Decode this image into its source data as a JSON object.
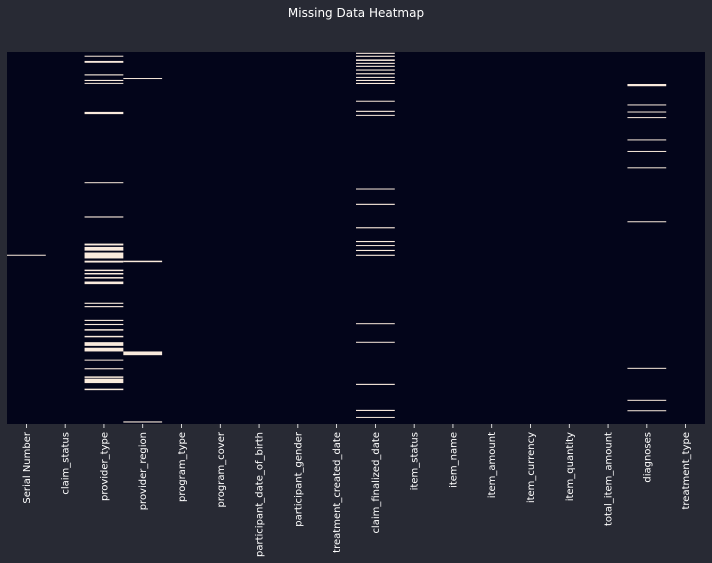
{
  "chart_data": {
    "type": "heatmap",
    "title": "Missing Data Heatmap",
    "xlabel": "",
    "ylabel": "",
    "n_rows": 1000,
    "columns": [
      "Serial Number",
      "claim_status",
      "provider_type",
      "provider_region",
      "program_type",
      "program_cover",
      "participant_date_of_birth",
      "participant_gender",
      "treatment_created_date",
      "claim_finalized_date",
      "item_status",
      "item_name",
      "item_amount",
      "item_currency",
      "item_quantity",
      "total_item_amount",
      "diagnoses",
      "treatment_type"
    ],
    "missing_rows": {
      "Serial Number": [
        [
          545,
          547
        ]
      ],
      "claim_status": [],
      "provider_type": [
        [
          10,
          12
        ],
        [
          24,
          29
        ],
        [
          60,
          63
        ],
        [
          75,
          78
        ],
        [
          83,
          85
        ],
        [
          161,
          167
        ],
        [
          350,
          352
        ],
        [
          442,
          445
        ],
        [
          515,
          520
        ],
        [
          524,
          534
        ],
        [
          539,
          555
        ],
        [
          561,
          566
        ],
        [
          585,
          589
        ],
        [
          594,
          598
        ],
        [
          605,
          609
        ],
        [
          617,
          624
        ],
        [
          674,
          677
        ],
        [
          683,
          686
        ],
        [
          720,
          723
        ],
        [
          731,
          734
        ],
        [
          745,
          749
        ],
        [
          763,
          767
        ],
        [
          780,
          790
        ],
        [
          795,
          805
        ],
        [
          827,
          829
        ],
        [
          850,
          853
        ],
        [
          872,
          876
        ],
        [
          878,
          890
        ],
        [
          905,
          909
        ]
      ],
      "provider_region": [
        [
          70,
          72
        ],
        [
          561,
          565
        ],
        [
          805,
          815
        ],
        [
          993,
          996
        ]
      ],
      "program_type": [],
      "program_cover": [],
      "participant_date_of_birth": [],
      "participant_gender": [],
      "treatment_created_date": [],
      "claim_finalized_date": [
        [
          2,
          5
        ],
        [
          10,
          13
        ],
        [
          20,
          24
        ],
        [
          29,
          32
        ],
        [
          37,
          40
        ],
        [
          47,
          50
        ],
        [
          57,
          60
        ],
        [
          67,
          69
        ],
        [
          75,
          78
        ],
        [
          83,
          86
        ],
        [
          131,
          133
        ],
        [
          158,
          161
        ],
        [
          169,
          171
        ],
        [
          367,
          369
        ],
        [
          408,
          411
        ],
        [
          471,
          474
        ],
        [
          508,
          511
        ],
        [
          519,
          521
        ],
        [
          532,
          535
        ],
        [
          545,
          548
        ],
        [
          729,
          731
        ],
        [
          779,
          781
        ],
        [
          892,
          895
        ],
        [
          962,
          965
        ],
        [
          981,
          983
        ]
      ],
      "item_status": [],
      "item_name": [],
      "item_amount": [],
      "item_currency": [],
      "item_quantity": [],
      "total_item_amount": [],
      "diagnoses": [
        [
          86,
          92
        ],
        [
          141,
          143
        ],
        [
          160,
          162
        ],
        [
          175,
          177
        ],
        [
          235,
          237
        ],
        [
          266,
          268
        ],
        [
          310,
          312
        ],
        [
          455,
          457
        ],
        [
          849,
          851
        ],
        [
          935,
          937
        ],
        [
          963,
          965
        ]
      ],
      "treatment_type": []
    },
    "colors": {
      "present": "#03051a",
      "missing": "#faebdd",
      "background": "#282a34",
      "text": "#ffffff"
    },
    "grid": false,
    "colorbar": false
  }
}
